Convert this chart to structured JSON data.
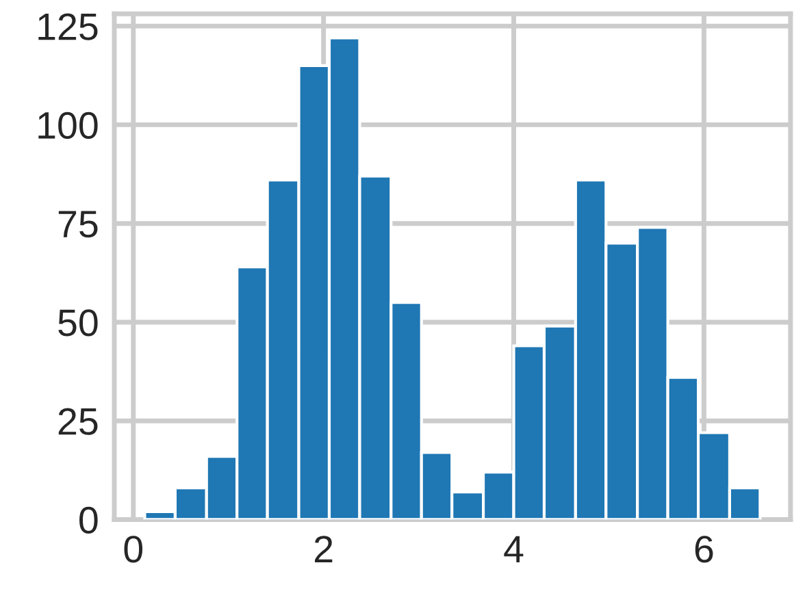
{
  "chart_data": {
    "type": "histogram",
    "bins": [
      0.12,
      0.44,
      0.77,
      1.09,
      1.41,
      1.74,
      2.06,
      2.38,
      2.71,
      3.03,
      3.35,
      3.68,
      4.0,
      4.32,
      4.65,
      4.97,
      5.3,
      5.62,
      5.94,
      6.27,
      6.59
    ],
    "values": [
      2,
      8,
      16,
      64,
      86,
      115,
      122,
      87,
      55,
      17,
      7,
      12,
      44,
      49,
      86,
      70,
      74,
      36,
      22,
      8
    ],
    "color": "#1f77b4",
    "xlim": [
      -0.2,
      6.91
    ],
    "ylim": [
      0,
      128.1
    ],
    "xticks": [
      0,
      2,
      4,
      6
    ],
    "yticks": [
      0,
      25,
      50,
      75,
      100,
      125
    ],
    "grid": true
  }
}
